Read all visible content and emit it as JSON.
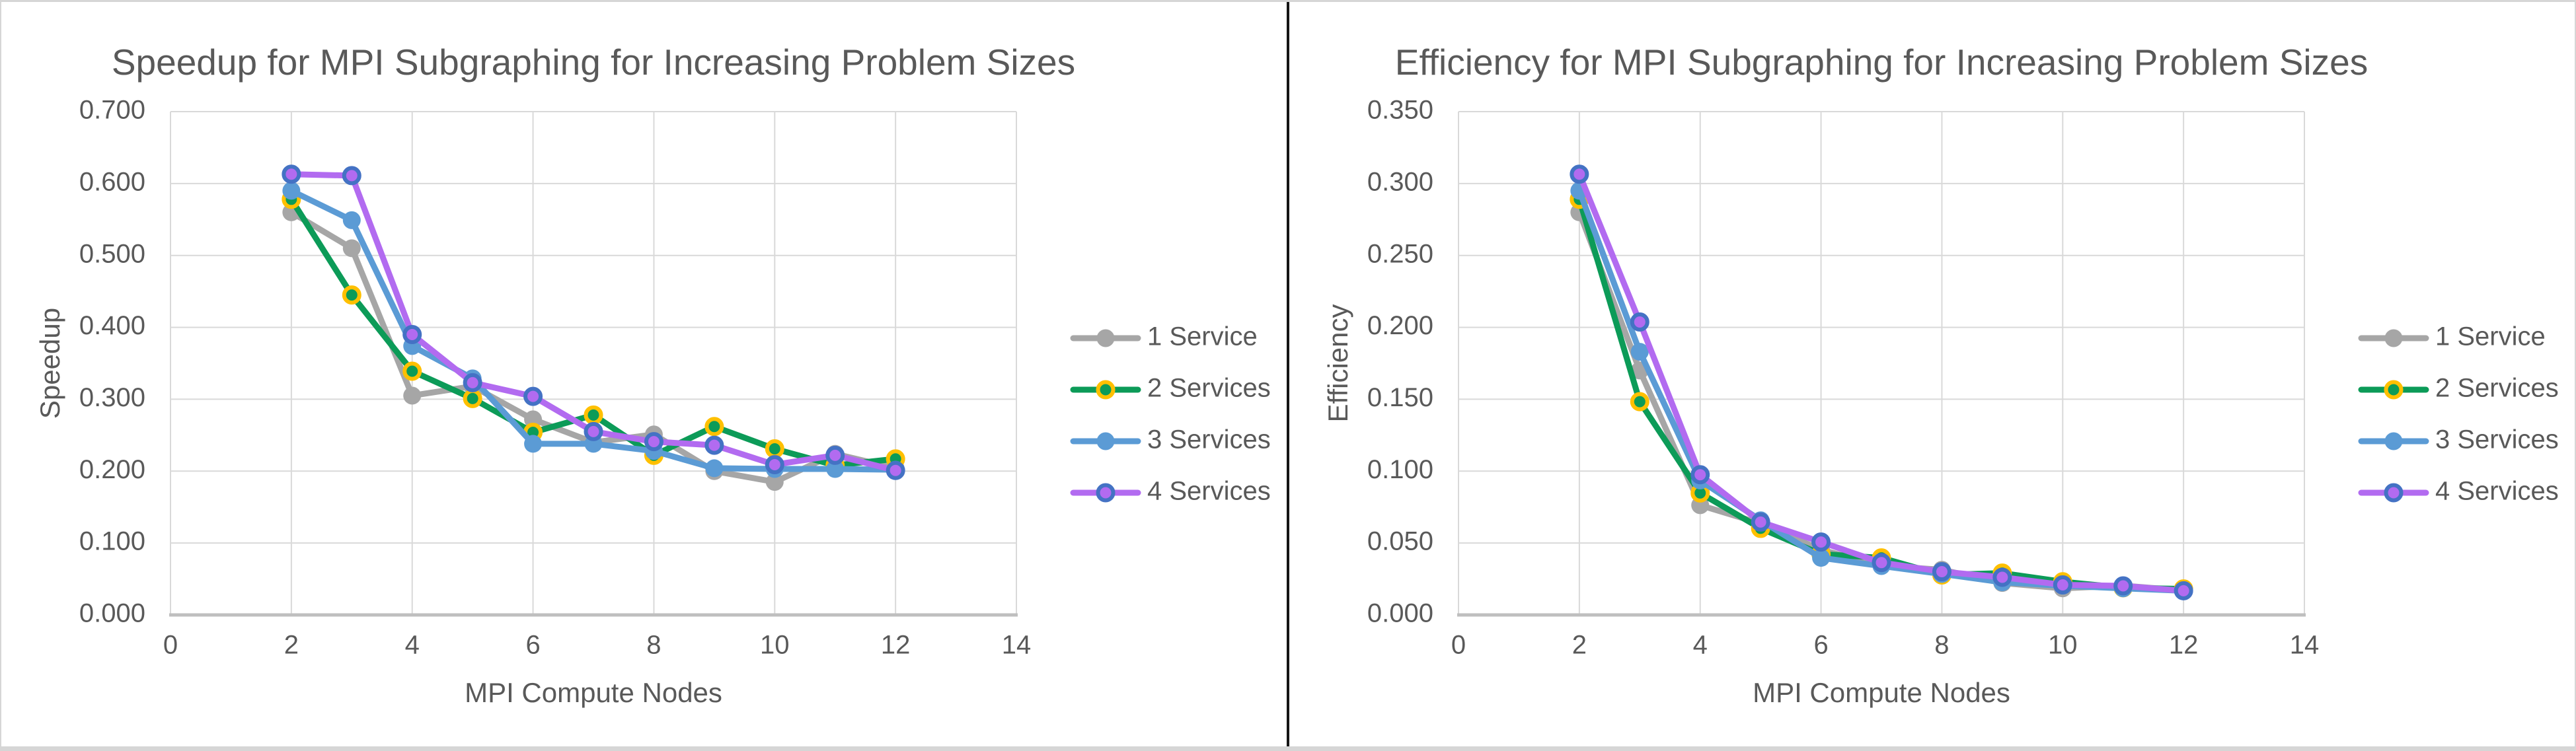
{
  "page": {
    "background": "#ffffff",
    "frame_color": "#d6d6d6",
    "divider_color": "#161616",
    "text_color": "#595959",
    "gridline_color": "#d9d9d9",
    "axis_line_color": "#bfbfbf"
  },
  "chart_data": [
    {
      "type": "line",
      "title": "Speedup for MPI Subgraphing for Increasing Problem Sizes",
      "xlabel": "MPI Compute Nodes",
      "ylabel": "Speedup",
      "xlim": [
        0,
        14
      ],
      "ylim": [
        0,
        0.7
      ],
      "grid": true,
      "legend_position": "right",
      "x_ticks": [
        {
          "v": 0,
          "label": "0"
        },
        {
          "v": 2,
          "label": "2"
        },
        {
          "v": 4,
          "label": "4"
        },
        {
          "v": 6,
          "label": "6"
        },
        {
          "v": 8,
          "label": "8"
        },
        {
          "v": 10,
          "label": "10"
        },
        {
          "v": 12,
          "label": "12"
        },
        {
          "v": 14,
          "label": "14"
        }
      ],
      "y_ticks": [
        {
          "v": 0.0,
          "label": "0.000"
        },
        {
          "v": 0.1,
          "label": "0.100"
        },
        {
          "v": 0.2,
          "label": "0.200"
        },
        {
          "v": 0.3,
          "label": "0.300"
        },
        {
          "v": 0.4,
          "label": "0.400"
        },
        {
          "v": 0.5,
          "label": "0.500"
        },
        {
          "v": 0.6,
          "label": "0.600"
        },
        {
          "v": 0.7,
          "label": "0.700"
        }
      ],
      "x": [
        2,
        3,
        4,
        5,
        6,
        7,
        8,
        9,
        10,
        11,
        12
      ],
      "series": [
        {
          "name": "1 Service",
          "color": "#A6A6A6",
          "marker_ring": null,
          "values": [
            0.56,
            0.51,
            0.305,
            0.318,
            0.272,
            0.24,
            0.251,
            0.2,
            0.185,
            0.224,
            0.204
          ]
        },
        {
          "name": "2 Services",
          "color": "#0C9B58",
          "marker_ring": "#FFC000",
          "values": [
            0.578,
            0.445,
            0.339,
            0.301,
            0.254,
            0.278,
            0.222,
            0.262,
            0.231,
            0.208,
            0.217
          ]
        },
        {
          "name": "3 Services",
          "color": "#5B9BD5",
          "marker_ring": null,
          "values": [
            0.59,
            0.549,
            0.374,
            0.329,
            0.238,
            0.238,
            0.228,
            0.204,
            0.203,
            0.203,
            0.202
          ]
        },
        {
          "name": "4 Services",
          "color": "#B26BF0",
          "marker_ring": "#4472C4",
          "values": [
            0.613,
            0.611,
            0.39,
            0.323,
            0.304,
            0.255,
            0.241,
            0.236,
            0.209,
            0.222,
            0.201
          ]
        }
      ]
    },
    {
      "type": "line",
      "title": "Efficiency for MPI Subgraphing for Increasing Problem Sizes",
      "xlabel": "MPI Compute Nodes",
      "ylabel": "Efficiency",
      "xlim": [
        0,
        14
      ],
      "ylim": [
        0,
        0.35
      ],
      "grid": true,
      "legend_position": "right",
      "x_ticks": [
        {
          "v": 0,
          "label": "0"
        },
        {
          "v": 2,
          "label": "2"
        },
        {
          "v": 4,
          "label": "4"
        },
        {
          "v": 6,
          "label": "6"
        },
        {
          "v": 8,
          "label": "8"
        },
        {
          "v": 10,
          "label": "10"
        },
        {
          "v": 12,
          "label": "12"
        },
        {
          "v": 14,
          "label": "14"
        }
      ],
      "y_ticks": [
        {
          "v": 0.0,
          "label": "0.000"
        },
        {
          "v": 0.05,
          "label": "0.050"
        },
        {
          "v": 0.1,
          "label": "0.100"
        },
        {
          "v": 0.15,
          "label": "0.150"
        },
        {
          "v": 0.2,
          "label": "0.200"
        },
        {
          "v": 0.25,
          "label": "0.250"
        },
        {
          "v": 0.3,
          "label": "0.300"
        },
        {
          "v": 0.35,
          "label": "0.350"
        }
      ],
      "x": [
        2,
        3,
        4,
        5,
        6,
        7,
        8,
        9,
        10,
        11,
        12
      ],
      "series": [
        {
          "name": "1 Service",
          "color": "#A6A6A6",
          "marker_ring": null,
          "values": [
            0.28,
            0.17,
            0.0763,
            0.0636,
            0.0453,
            0.0343,
            0.0314,
            0.0222,
            0.0185,
            0.0204,
            0.017
          ]
        },
        {
          "name": "2 Services",
          "color": "#0C9B58",
          "marker_ring": "#FFC000",
          "values": [
            0.289,
            0.1483,
            0.0848,
            0.0602,
            0.0423,
            0.0397,
            0.0278,
            0.0291,
            0.0231,
            0.0189,
            0.0181
          ]
        },
        {
          "name": "3 Services",
          "color": "#5B9BD5",
          "marker_ring": null,
          "values": [
            0.295,
            0.183,
            0.0935,
            0.0658,
            0.0397,
            0.034,
            0.0285,
            0.0227,
            0.0203,
            0.0185,
            0.0168
          ]
        },
        {
          "name": "4 Services",
          "color": "#B26BF0",
          "marker_ring": "#4472C4",
          "values": [
            0.3065,
            0.2037,
            0.0975,
            0.0646,
            0.0507,
            0.0364,
            0.0301,
            0.0262,
            0.0209,
            0.0202,
            0.0168
          ]
        }
      ]
    }
  ]
}
